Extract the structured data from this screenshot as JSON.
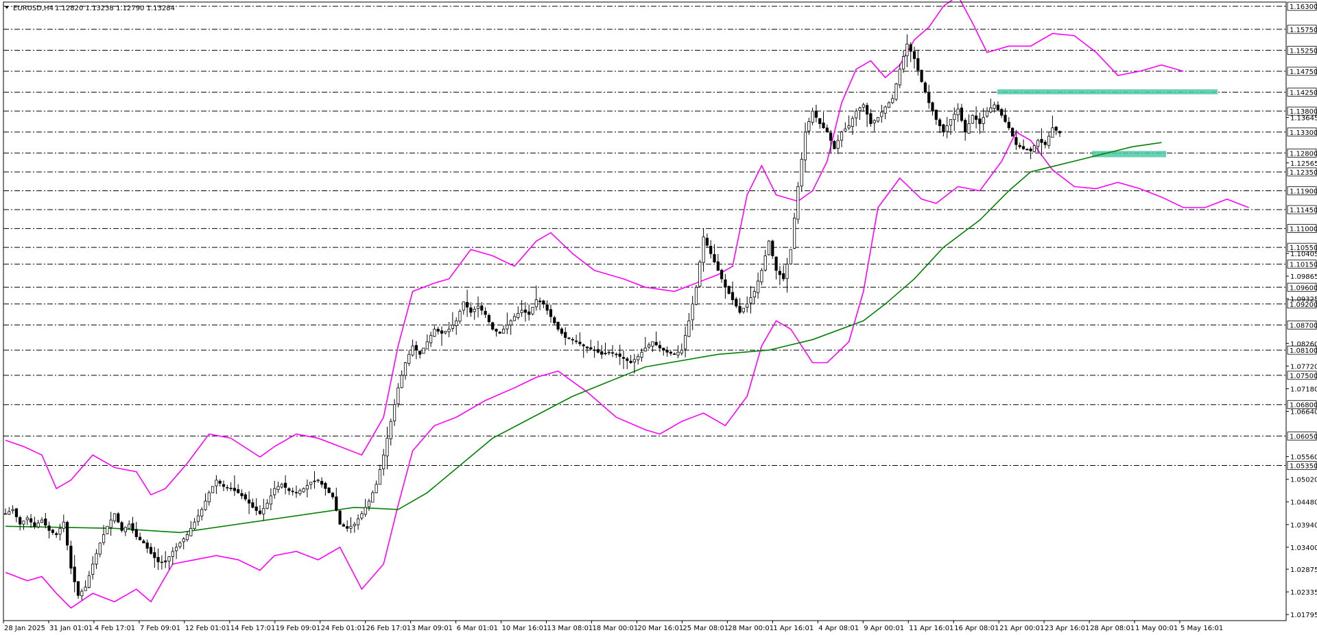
{
  "header": {
    "symbol": "EURUSD,H4",
    "ohlc": "1.12820 1.13238 1.12790 1.13284"
  },
  "colors": {
    "background": "#ffffff",
    "grid": "#000000",
    "bollinger": "#ff00ff",
    "ma": "#008000",
    "zone": "#4cc9a7",
    "candle_up": "#ffffff",
    "candle_down": "#000000"
  },
  "chart_data": {
    "type": "candlestick",
    "ylim": [
      1.0165,
      1.164
    ],
    "x_tick_labels": [
      "28 Jan 2025",
      "31 Jan 01:01",
      "4 Feb 17:01",
      "7 Feb 09:01",
      "12 Feb 01:01",
      "14 Feb 17:01",
      "19 Feb 09:01",
      "24 Feb 01:01",
      "26 Feb 17:01",
      "3 Mar 09:01",
      "6 Mar 01:01",
      "10 Mar 16:01",
      "13 Mar 08:01",
      "18 Mar 00:01",
      "20 Mar 16:01",
      "25 Mar 08:01",
      "28 Mar 00:01",
      "1 Apr 16:01",
      "4 Apr 08:01",
      "9 Apr 00:01",
      "11 Apr 16:01",
      "16 Apr 08:01",
      "21 Apr 00:01",
      "23 Apr 16:01",
      "28 Apr 08:01",
      "1 May 00:01",
      "5 May 16:01"
    ],
    "price_levels": [
      {
        "price": 1.163,
        "label": "1.16300",
        "highlight": true
      },
      {
        "price": 1.1575,
        "label": "1.15750",
        "highlight": true
      },
      {
        "price": 1.1525,
        "label": "1.15250",
        "highlight": true
      },
      {
        "price": 1.1475,
        "label": "1.14750",
        "highlight": true
      },
      {
        "price": 1.1425,
        "label": "1.14250",
        "highlight": true
      },
      {
        "price": 1.138,
        "label": "1.13800",
        "highlight": true
      },
      {
        "price": 1.133,
        "label": "1.13300",
        "highlight": true
      },
      {
        "price": 1.128,
        "label": "1.12800",
        "highlight": true
      },
      {
        "price": 1.1235,
        "label": "1.12350",
        "highlight": true
      },
      {
        "price": 1.119,
        "label": "1.11900",
        "highlight": true
      },
      {
        "price": 1.1145,
        "label": "1.11450",
        "highlight": true
      },
      {
        "price": 1.11,
        "label": "1.11000",
        "highlight": true
      },
      {
        "price": 1.1055,
        "label": "1.10550",
        "highlight": true
      },
      {
        "price": 1.1015,
        "label": "1.10150",
        "highlight": true
      },
      {
        "price": 1.096,
        "label": "1.09600",
        "highlight": true
      },
      {
        "price": 1.092,
        "label": "1.09200",
        "highlight": true
      },
      {
        "price": 1.087,
        "label": "1.08700",
        "highlight": true
      },
      {
        "price": 1.081,
        "label": "1.08100",
        "highlight": true
      },
      {
        "price": 1.075,
        "label": "1.07500",
        "highlight": true
      },
      {
        "price": 1.068,
        "label": "1.06800",
        "highlight": true
      },
      {
        "price": 1.0605,
        "label": "1.06050",
        "highlight": true
      },
      {
        "price": 1.0535,
        "label": "1.05350",
        "highlight": true
      }
    ],
    "y_tick_labels": [
      {
        "price": 1.13645,
        "label": "1.13645"
      },
      {
        "price": 1.12565,
        "label": "1.12565"
      },
      {
        "price": 1.10405,
        "label": "1.10405"
      },
      {
        "price": 1.09865,
        "label": "1.09865"
      },
      {
        "price": 1.09325,
        "label": "1.09325"
      },
      {
        "price": 1.0826,
        "label": "1.08260"
      },
      {
        "price": 1.0772,
        "label": "1.07720"
      },
      {
        "price": 1.0718,
        "label": "1.07180"
      },
      {
        "price": 1.0664,
        "label": "1.06640"
      },
      {
        "price": 1.0556,
        "label": "1.05560"
      },
      {
        "price": 1.0502,
        "label": "1.05020"
      },
      {
        "price": 1.0448,
        "label": "1.04480"
      },
      {
        "price": 1.0394,
        "label": "1.03940"
      },
      {
        "price": 1.034,
        "label": "1.03400"
      },
      {
        "price": 1.02875,
        "label": "1.02875"
      },
      {
        "price": 1.02335,
        "label": "1.02335"
      },
      {
        "price": 1.01795,
        "label": "1.01795"
      }
    ],
    "zones": [
      {
        "price_top": 1.1432,
        "price_bottom": 1.142
      },
      {
        "price_top": 1.1285,
        "price_bottom": 1.127
      }
    ],
    "close_path": [
      [
        0,
        1.042
      ],
      [
        2,
        1.043
      ],
      [
        4,
        1.0395
      ],
      [
        6,
        1.041
      ],
      [
        8,
        1.039
      ],
      [
        10,
        1.0405
      ],
      [
        12,
        1.038
      ],
      [
        14,
        1.037
      ],
      [
        16,
        1.04
      ],
      [
        18,
        1.029
      ],
      [
        20,
        1.0225
      ],
      [
        22,
        1.0245
      ],
      [
        24,
        1.03
      ],
      [
        26,
        1.035
      ],
      [
        28,
        1.039
      ],
      [
        30,
        1.042
      ],
      [
        32,
        1.038
      ],
      [
        34,
        1.0395
      ],
      [
        36,
        1.0365
      ],
      [
        38,
        1.035
      ],
      [
        40,
        1.0325
      ],
      [
        42,
        1.0305
      ],
      [
        44,
        1.0305
      ],
      [
        46,
        1.033
      ],
      [
        48,
        1.035
      ],
      [
        50,
        1.037
      ],
      [
        52,
        1.04
      ],
      [
        54,
        1.043
      ],
      [
        56,
        1.047
      ],
      [
        58,
        1.05
      ],
      [
        60,
        1.0485
      ],
      [
        62,
        1.048
      ],
      [
        64,
        1.047
      ],
      [
        66,
        1.0455
      ],
      [
        68,
        1.0435
      ],
      [
        70,
        1.042
      ],
      [
        72,
        1.0445
      ],
      [
        74,
        1.048
      ],
      [
        76,
        1.049
      ],
      [
        78,
        1.0475
      ],
      [
        80,
        1.047
      ],
      [
        82,
        1.048
      ],
      [
        84,
        1.0495
      ],
      [
        86,
        1.05
      ],
      [
        88,
        1.048
      ],
      [
        90,
        1.046
      ],
      [
        92,
        1.0395
      ],
      [
        94,
        1.0385
      ],
      [
        96,
        1.0395
      ],
      [
        98,
        1.042
      ],
      [
        100,
        1.045
      ],
      [
        102,
        1.049
      ],
      [
        104,
        1.056
      ],
      [
        106,
        1.064
      ],
      [
        108,
        1.072
      ],
      [
        110,
        1.078
      ],
      [
        112,
        1.082
      ],
      [
        114,
        1.08
      ],
      [
        116,
        1.083
      ],
      [
        118,
        1.086
      ],
      [
        120,
        1.085
      ],
      [
        122,
        1.086
      ],
      [
        124,
        1.088
      ],
      [
        126,
        1.0925
      ],
      [
        128,
        1.09
      ],
      [
        130,
        1.0915
      ],
      [
        132,
        1.0895
      ],
      [
        134,
        1.086
      ],
      [
        136,
        1.085
      ],
      [
        138,
        1.087
      ],
      [
        140,
        1.089
      ],
      [
        142,
        1.0905
      ],
      [
        144,
        1.0895
      ],
      [
        146,
        1.093
      ],
      [
        148,
        1.092
      ],
      [
        150,
        1.089
      ],
      [
        152,
        1.086
      ],
      [
        154,
        1.084
      ],
      [
        156,
        1.0835
      ],
      [
        158,
        1.0825
      ],
      [
        160,
        1.0815
      ],
      [
        162,
        1.081
      ],
      [
        164,
        1.08
      ],
      [
        166,
        1.0805
      ],
      [
        168,
        1.08
      ],
      [
        170,
        1.079
      ],
      [
        172,
        1.078
      ],
      [
        174,
        1.0795
      ],
      [
        176,
        1.0815
      ],
      [
        178,
        1.083
      ],
      [
        180,
        1.0815
      ],
      [
        182,
        1.0805
      ],
      [
        184,
        1.08
      ],
      [
        186,
        1.081
      ],
      [
        188,
        1.088
      ],
      [
        190,
        1.096
      ],
      [
        192,
        1.108
      ],
      [
        194,
        1.104
      ],
      [
        196,
        1.1
      ],
      [
        198,
        1.096
      ],
      [
        200,
        1.093
      ],
      [
        202,
        1.09
      ],
      [
        204,
        1.092
      ],
      [
        206,
        1.095
      ],
      [
        208,
        1.1
      ],
      [
        210,
        1.107
      ],
      [
        212,
        1.1
      ],
      [
        214,
        1.098
      ],
      [
        216,
        1.105
      ],
      [
        218,
        1.12
      ],
      [
        220,
        1.133
      ],
      [
        222,
        1.138
      ],
      [
        224,
        1.135
      ],
      [
        226,
        1.133
      ],
      [
        228,
        1.129
      ],
      [
        230,
        1.133
      ],
      [
        232,
        1.1345
      ],
      [
        234,
        1.138
      ],
      [
        236,
        1.1395
      ],
      [
        238,
        1.135
      ],
      [
        240,
        1.1365
      ],
      [
        242,
        1.139
      ],
      [
        244,
        1.141
      ],
      [
        246,
        1.148
      ],
      [
        248,
        1.154
      ],
      [
        250,
        1.1505
      ],
      [
        252,
        1.145
      ],
      [
        254,
        1.14
      ],
      [
        256,
        1.136
      ],
      [
        258,
        1.133
      ],
      [
        260,
        1.136
      ],
      [
        262,
        1.1385
      ],
      [
        264,
        1.133
      ],
      [
        266,
        1.137
      ],
      [
        268,
        1.135
      ],
      [
        270,
        1.138
      ],
      [
        272,
        1.1395
      ],
      [
        274,
        1.137
      ],
      [
        276,
        1.134
      ],
      [
        278,
        1.13
      ],
      [
        280,
        1.129
      ],
      [
        282,
        1.1285
      ],
      [
        284,
        1.131
      ],
      [
        286,
        1.13
      ],
      [
        288,
        1.134
      ],
      [
        290,
        1.1328
      ]
    ],
    "ma_path": [
      [
        0,
        1.039
      ],
      [
        30,
        1.0385
      ],
      [
        48,
        1.0375
      ],
      [
        68,
        1.04
      ],
      [
        96,
        1.0435
      ],
      [
        108,
        1.043
      ],
      [
        116,
        1.047
      ],
      [
        134,
        1.06
      ],
      [
        156,
        1.07
      ],
      [
        176,
        1.077
      ],
      [
        196,
        1.08
      ],
      [
        210,
        1.081
      ],
      [
        222,
        1.0835
      ],
      [
        236,
        1.088
      ],
      [
        242,
        1.092
      ],
      [
        250,
        1.098
      ],
      [
        258,
        1.1055
      ],
      [
        268,
        1.112
      ],
      [
        276,
        1.119
      ],
      [
        282,
        1.1235
      ],
      [
        296,
        1.1265
      ],
      [
        310,
        1.1295
      ],
      [
        318,
        1.1305
      ]
    ],
    "bb_upper": [
      [
        0,
        1.0595
      ],
      [
        5,
        1.058
      ],
      [
        10,
        1.056
      ],
      [
        14,
        1.048
      ],
      [
        18,
        1.05
      ],
      [
        24,
        1.056
      ],
      [
        30,
        1.053
      ],
      [
        36,
        1.052
      ],
      [
        40,
        1.0465
      ],
      [
        44,
        1.048
      ],
      [
        50,
        1.054
      ],
      [
        56,
        1.061
      ],
      [
        62,
        1.06
      ],
      [
        70,
        1.0555
      ],
      [
        74,
        1.058
      ],
      [
        80,
        1.061
      ],
      [
        86,
        1.06
      ],
      [
        92,
        1.058
      ],
      [
        98,
        1.056
      ],
      [
        104,
        1.065
      ],
      [
        108,
        1.082
      ],
      [
        112,
        1.095
      ],
      [
        118,
        1.097
      ],
      [
        122,
        1.098
      ],
      [
        128,
        1.105
      ],
      [
        134,
        1.1035
      ],
      [
        140,
        1.101
      ],
      [
        146,
        1.107
      ],
      [
        150,
        1.109
      ],
      [
        156,
        1.104
      ],
      [
        162,
        1.1
      ],
      [
        170,
        1.098
      ],
      [
        176,
        1.096
      ],
      [
        184,
        1.095
      ],
      [
        190,
        1.097
      ],
      [
        196,
        1.099
      ],
      [
        200,
        1.101
      ],
      [
        204,
        1.118
      ],
      [
        208,
        1.125
      ],
      [
        212,
        1.118
      ],
      [
        218,
        1.1165
      ],
      [
        222,
        1.119
      ],
      [
        226,
        1.126
      ],
      [
        230,
        1.14
      ],
      [
        234,
        1.148
      ],
      [
        238,
        1.15
      ],
      [
        242,
        1.146
      ],
      [
        246,
        1.149
      ],
      [
        250,
        1.155
      ],
      [
        254,
        1.158
      ],
      [
        258,
        1.163
      ],
      [
        262,
        1.1655
      ],
      [
        266,
        1.159
      ],
      [
        270,
        1.152
      ],
      [
        276,
        1.1535
      ],
      [
        282,
        1.1535
      ],
      [
        288,
        1.1565
      ],
      [
        294,
        1.156
      ],
      [
        300,
        1.152
      ],
      [
        306,
        1.1465
      ],
      [
        312,
        1.1475
      ],
      [
        318,
        1.149
      ],
      [
        324,
        1.1475
      ]
    ],
    "bb_lower": [
      [
        0,
        1.028
      ],
      [
        6,
        1.026
      ],
      [
        10,
        1.027
      ],
      [
        14,
        1.023
      ],
      [
        18,
        1.0195
      ],
      [
        24,
        1.023
      ],
      [
        30,
        1.021
      ],
      [
        36,
        1.024
      ],
      [
        40,
        1.021
      ],
      [
        46,
        1.03
      ],
      [
        52,
        1.031
      ],
      [
        58,
        1.032
      ],
      [
        64,
        1.031
      ],
      [
        70,
        1.0285
      ],
      [
        74,
        1.032
      ],
      [
        80,
        1.033
      ],
      [
        86,
        1.031
      ],
      [
        92,
        1.034
      ],
      [
        98,
        1.024
      ],
      [
        104,
        1.03
      ],
      [
        108,
        1.044
      ],
      [
        112,
        1.057
      ],
      [
        118,
        1.063
      ],
      [
        124,
        1.065
      ],
      [
        132,
        1.069
      ],
      [
        140,
        1.072
      ],
      [
        146,
        1.0745
      ],
      [
        152,
        1.076
      ],
      [
        160,
        1.071
      ],
      [
        168,
        1.065
      ],
      [
        176,
        1.062
      ],
      [
        180,
        1.061
      ],
      [
        186,
        1.064
      ],
      [
        192,
        1.066
      ],
      [
        198,
        1.063
      ],
      [
        204,
        1.07
      ],
      [
        208,
        1.082
      ],
      [
        212,
        1.088
      ],
      [
        216,
        1.086
      ],
      [
        222,
        1.078
      ],
      [
        226,
        1.078
      ],
      [
        232,
        1.083
      ],
      [
        236,
        1.095
      ],
      [
        240,
        1.115
      ],
      [
        246,
        1.122
      ],
      [
        252,
        1.117
      ],
      [
        256,
        1.116
      ],
      [
        262,
        1.12
      ],
      [
        268,
        1.119
      ],
      [
        274,
        1.126
      ],
      [
        278,
        1.133
      ],
      [
        282,
        1.131
      ],
      [
        288,
        1.124
      ],
      [
        294,
        1.12
      ],
      [
        300,
        1.1195
      ],
      [
        306,
        1.121
      ],
      [
        312,
        1.1195
      ],
      [
        318,
        1.1175
      ],
      [
        324,
        1.115
      ],
      [
        330,
        1.115
      ],
      [
        336,
        1.117
      ],
      [
        342,
        1.115
      ]
    ]
  }
}
